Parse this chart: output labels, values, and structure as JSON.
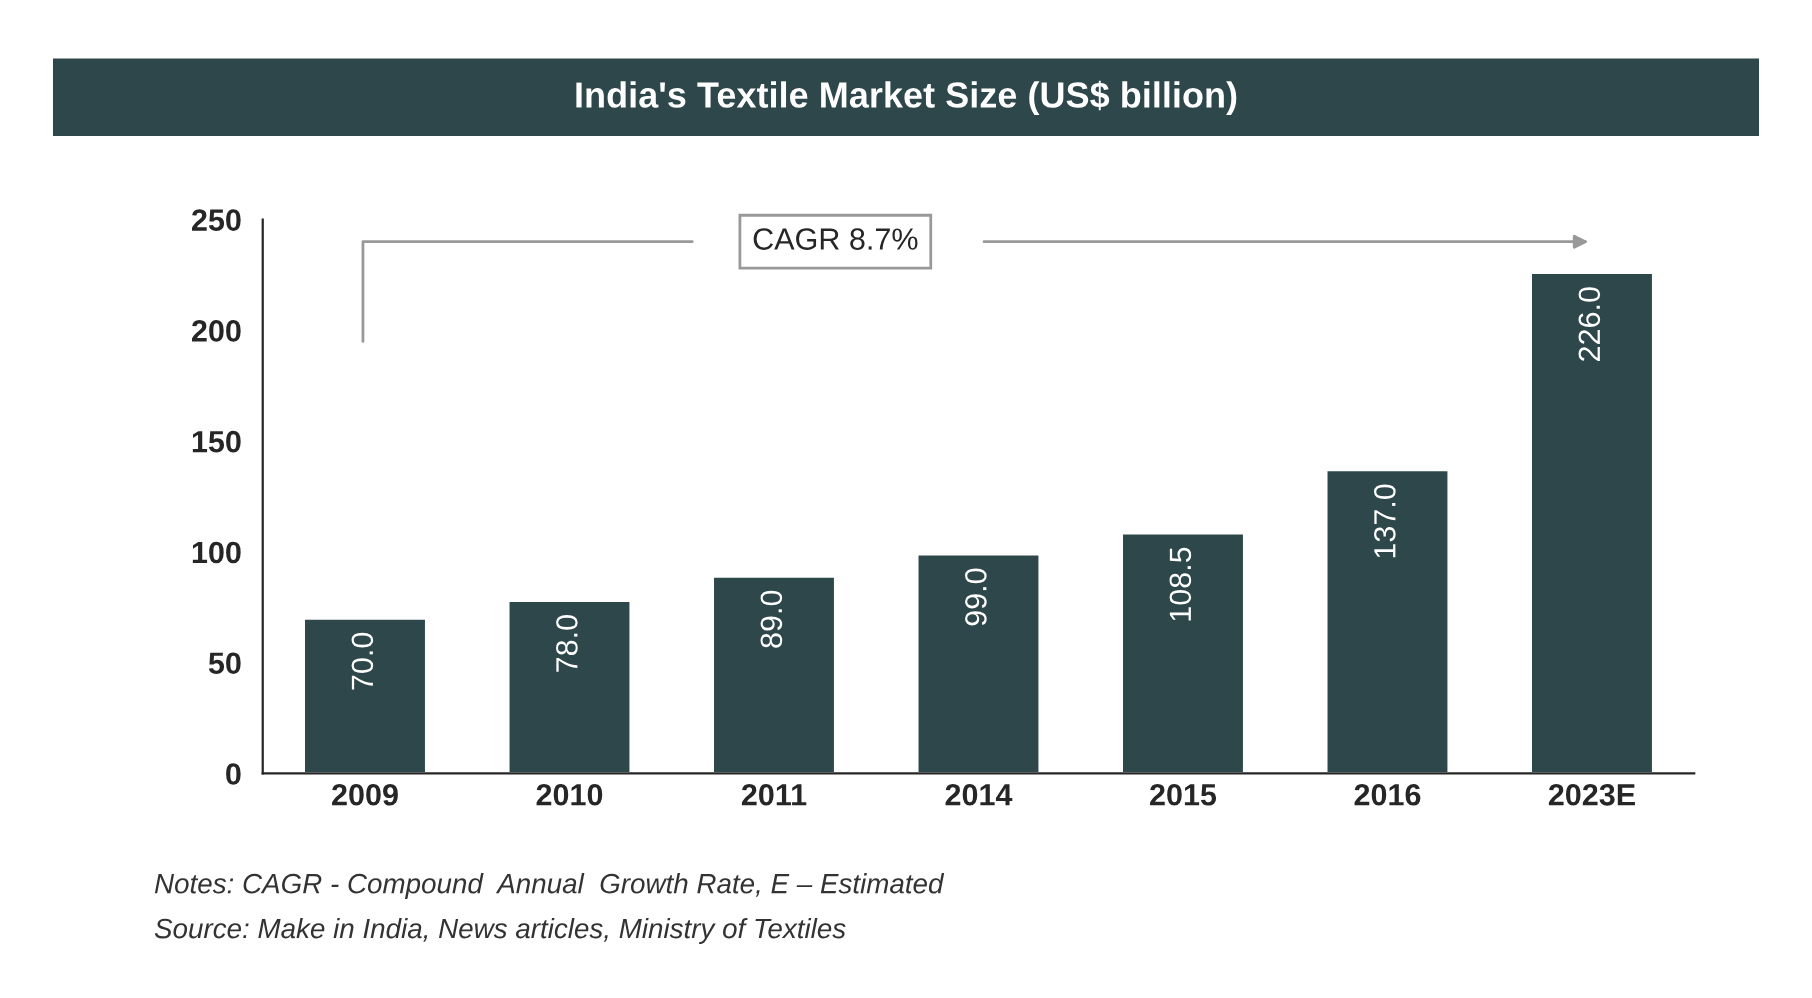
{
  "chart_data": {
    "type": "bar",
    "title": "India's Textile Market Size (US$ billion)",
    "categories": [
      "2009",
      "2010",
      "2011",
      "2014",
      "2015",
      "2016",
      "2023E"
    ],
    "values": [
      70.0,
      78.0,
      89.0,
      99.0,
      108.5,
      137.0,
      226.0
    ],
    "color": "#2e474b",
    "ylim": [
      0,
      250
    ],
    "yticks": [
      0,
      50,
      100,
      150,
      200,
      250
    ],
    "grid": false,
    "legend": false,
    "value_labels": [
      "70.0",
      "78.0",
      "89.0",
      "99.0",
      "108.5",
      "137.0",
      "226.0"
    ],
    "annotations": [
      "CAGR 8.7%",
      "Notes: CAGR - Compound  Annual  Growth Rate, E – Estimated",
      "Source: Make in India, News articles, Ministry of Textiles"
    ]
  }
}
